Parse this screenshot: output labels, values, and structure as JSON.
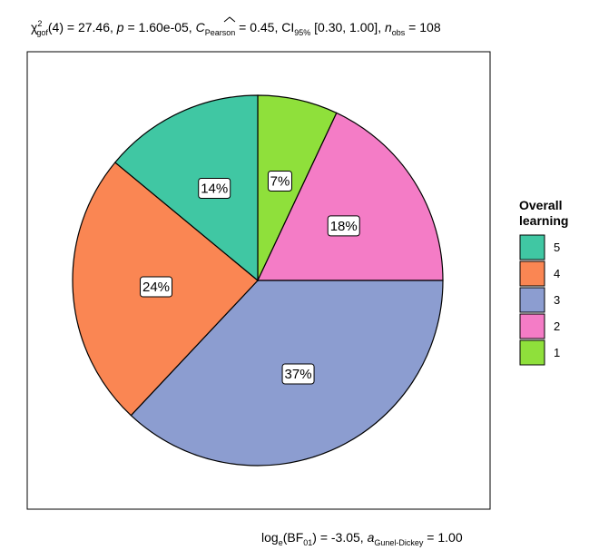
{
  "chart_data": {
    "type": "pie",
    "title": {
      "chi": "χ",
      "chi_sup": "2",
      "chi_sub": "gof",
      "df_part": "(4) = 27.46, ",
      "p_sym": "p",
      "p_part": " = 1.60e-05, ",
      "c_sym": "C",
      "c_sub": "Pearson",
      "c_part": " = 0.45, CI",
      "ci_sub": "95%",
      "ci_part": " [0.30, 1.00], ",
      "n_sym": "n",
      "n_sub": "obs",
      "n_part": " = 108"
    },
    "caption": {
      "log_a": "log",
      "log_sub": "e",
      "bf_a": "(BF",
      "bf_sub": "01",
      "bf_b": ") = -3.05, ",
      "a_sym": "a",
      "a_sub": "Gunel-Dickey",
      "a_val": " = 1.00"
    },
    "legend": {
      "title_line1": "Overall",
      "title_line2": "learning",
      "position": "right"
    },
    "slices": [
      {
        "category": "1",
        "percent": 7,
        "label": "7%",
        "color": "#8fe03b"
      },
      {
        "category": "2",
        "percent": 18,
        "label": "18%",
        "color": "#f47cc6"
      },
      {
        "category": "3",
        "percent": 37,
        "label": "37%",
        "color": "#8c9dd0"
      },
      {
        "category": "4",
        "percent": 24,
        "label": "24%",
        "color": "#fa8653"
      },
      {
        "category": "5",
        "percent": 14,
        "label": "14%",
        "color": "#40c7a3"
      }
    ],
    "legend_order": [
      "5",
      "4",
      "3",
      "2",
      "1"
    ]
  }
}
